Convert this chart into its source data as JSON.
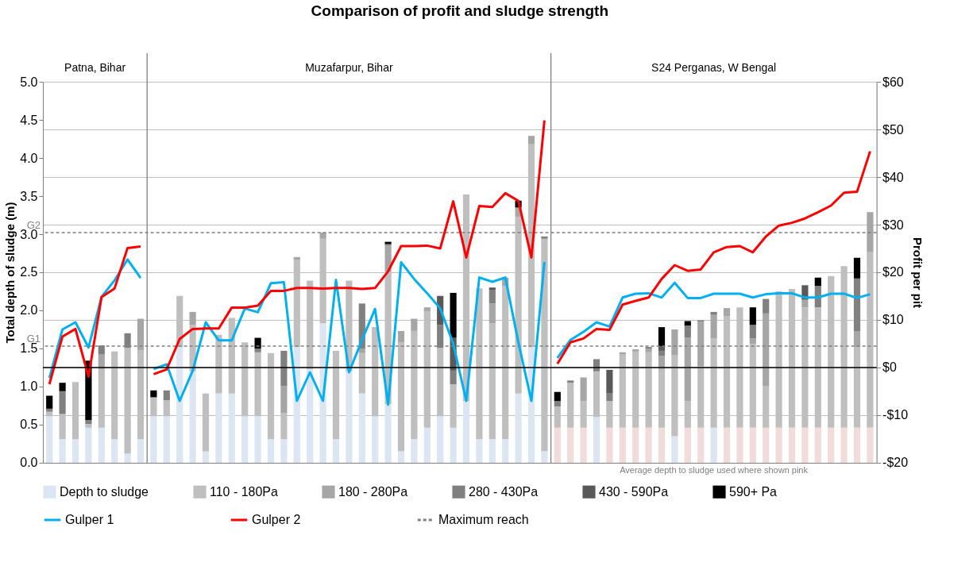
{
  "chart_data": {
    "type": "bar",
    "stacked": true,
    "title": "Comparison of profit and sludge strength",
    "ylabel": "Total depth of sludge  (m)",
    "y2label": "Profit  per pit",
    "categories": [
      null,
      null,
      null,
      null,
      null,
      null,
      null,
      null,
      null,
      null,
      null,
      null,
      null,
      null,
      null,
      null,
      null,
      null,
      null,
      null,
      null,
      null,
      null,
      null,
      null,
      null,
      null,
      null,
      null,
      null,
      null,
      null,
      null,
      null,
      null,
      null,
      null,
      null,
      null,
      null,
      null,
      null,
      null,
      null,
      null,
      null,
      null,
      null,
      null,
      null,
      null,
      null,
      null,
      null,
      null,
      null,
      null,
      null,
      null,
      null,
      null,
      null,
      null,
      null
    ],
    "ylim": [
      0,
      5
    ],
    "yticks": [
      {
        "value": 0,
        "label": "0.0"
      },
      {
        "value": 0.5,
        "label": "0.5"
      },
      {
        "value": 1,
        "label": "1.0"
      },
      {
        "value": 1.5,
        "label": "1.5"
      },
      {
        "value": 2,
        "label": "2.0"
      },
      {
        "value": 2.5,
        "label": "2.5"
      },
      {
        "value": 3,
        "label": "3.0"
      },
      {
        "value": 3.5,
        "label": "3.5"
      },
      {
        "value": 4,
        "label": "4.0"
      },
      {
        "value": 4.5,
        "label": "4.5"
      },
      {
        "value": 5,
        "label": "5.0"
      }
    ],
    "y2lim": [
      -20,
      60
    ],
    "y2ticks": [
      {
        "value": -20,
        "label": "-$20"
      },
      {
        "value": -10,
        "label": "-$10"
      },
      {
        "value": 0,
        "label": "$0"
      },
      {
        "value": 10,
        "label": "$10"
      },
      {
        "value": 20,
        "label": "$20"
      },
      {
        "value": 30,
        "label": "$30"
      },
      {
        "value": 40,
        "label": "$40"
      },
      {
        "value": 50,
        "label": "$50"
      },
      {
        "value": 60,
        "label": "$60"
      }
    ],
    "grid": "y2",
    "legend": "bottom",
    "annotations": [
      "Patna, Bihar",
      "Muzafarpur, Bihar",
      "S24 Perganas, W Bengal",
      "Average depth to sludge used where shown pink"
    ],
    "ref_lines": [
      {
        "axis": "y",
        "value": 1.53,
        "label": "G1",
        "line_style": "dashed",
        "color": "#808080"
      },
      {
        "axis": "y",
        "value": 3.02,
        "label": "G2",
        "line_style": "dashed",
        "color": "#808080"
      },
      {
        "axis": "y2",
        "value": 0,
        "color": "#000000"
      }
    ],
    "series": [
      {
        "name": "Depth to sludge",
        "color": "#dce6f2",
        "colors": [
          "#dce6f2",
          "#dce6f2",
          "#dce6f2",
          "#dce6f2",
          "#dce6f2",
          "#dce6f2",
          "#dce6f2",
          "#dce6f2",
          "#dce6f2",
          "#dce6f2",
          "#dce6f2",
          "#dce6f2",
          "#dce6f2",
          "#dce6f2",
          "#dce6f2",
          "#dce6f2",
          "#dce6f2",
          "#dce6f2",
          "#dce6f2",
          "#dce6f2",
          "#dce6f2",
          "#dce6f2",
          "#dce6f2",
          "#dce6f2",
          "#dce6f2",
          "#dce6f2",
          "#dce6f2",
          "#dce6f2",
          "#dce6f2",
          "#dce6f2",
          "#dce6f2",
          "#dce6f2",
          "#dce6f2",
          "#dce6f2",
          "#dce6f2",
          "#dce6f2",
          "#dce6f2",
          "#dce6f2",
          "#dce6f2",
          "#f2dcdb",
          "#f2dcdb",
          "#f2dcdb",
          "#dce6f2",
          "#f2dcdb",
          "#f2dcdb",
          "#f2dcdb",
          "#f2dcdb",
          "#f2dcdb",
          "#dce6f2",
          "#f2dcdb",
          "#f2dcdb",
          "#dce6f2",
          "#f2dcdb",
          "#f2dcdb",
          "#f2dcdb",
          "#f2dcdb",
          "#f2dcdb",
          "#f2dcdb",
          "#f2dcdb",
          "#f2dcdb",
          "#f2dcdb",
          "#f2dcdb",
          "#f2dcdb",
          "#f2dcdb"
        ],
        "values": [
          0.61,
          0.31,
          0.31,
          0.46,
          0.46,
          0.31,
          0.12,
          0.31,
          0.61,
          0.61,
          1.52,
          1.2,
          0.15,
          0.91,
          0.91,
          0.61,
          0.61,
          0.31,
          0.31,
          1.52,
          1.23,
          1.83,
          0.31,
          1.2,
          0.91,
          0.61,
          0.77,
          0.15,
          0.31,
          0.46,
          0.61,
          0.46,
          0.81,
          0.31,
          0.31,
          0.31,
          0.91,
          1.52,
          0.15,
          0.46,
          0.46,
          0.46,
          0.6,
          0.46,
          0.46,
          0.46,
          0.46,
          0.46,
          0.35,
          0.46,
          0.46,
          0.46,
          0.46,
          0.46,
          0.46,
          0.46,
          0.46,
          0.46,
          0.46,
          0.46,
          0.46,
          0.46,
          0.46,
          0.46
        ]
      },
      {
        "name": "110 - 180Pa",
        "color": "#bfbfbf",
        "values": [
          0.06,
          0.33,
          0.75,
          0.05,
          0.77,
          1.15,
          1.39,
          1.17,
          0.25,
          0.21,
          0.67,
          0.61,
          0.76,
          0.77,
          0.99,
          0.97,
          0.84,
          1.13,
          0.34,
          1.14,
          1.16,
          1.11,
          1.16,
          1.19,
          0.53,
          1.17,
          1.74,
          1.43,
          1.42,
          1.53,
          0.9,
          0.57,
          2.71,
          1.98,
          1.52,
          2.01,
          2.32,
          2.66,
          2.79,
          0.28,
          0.59,
          0.35,
          0.6,
          0.35,
          0.96,
          1.0,
          0.99,
          0.77,
          1.06,
          0.35,
          0.81,
          1.17,
          1.46,
          1.58,
          1.1,
          0.55,
          1.79,
          1.82,
          1.58,
          1.58,
          1.99,
          2.12,
          1.06,
          2.31
        ]
      },
      {
        "name": "180 - 280Pa",
        "color": "#a6a6a6",
        "values": [
          null,
          null,
          null,
          null,
          0.19,
          null,
          null,
          0.41,
          null,
          null,
          null,
          0.17,
          null,
          null,
          null,
          null,
          null,
          null,
          0.36,
          0.04,
          null,
          0.08,
          null,
          null,
          0.06,
          null,
          0.34,
          0.15,
          0.16,
          0.05,
          null,
          null,
          null,
          null,
          0.26,
          0.11,
          0.12,
          0.11,
          null,
          null,
          null,
          0.31,
          null,
          null,
          0.03,
          0.03,
          0.05,
          0.17,
          0.34,
          0.83,
          0.58,
          0.31,
          0.11,
          null,
          0.07,
          0.95,
          null,
          null,
          0.1,
          null,
          null,
          null,
          0.21,
          0.52
        ]
      },
      {
        "name": "280 - 430Pa",
        "color": "#808080",
        "values": [
          0.04,
          0.3,
          null,
          0.05,
          0.12,
          null,
          0.19,
          null,
          null,
          0.13,
          null,
          null,
          null,
          null,
          null,
          null,
          0.05,
          null,
          0.46,
          null,
          null,
          null,
          null,
          null,
          0.59,
          null,
          0.02,
          null,
          null,
          null,
          0.3,
          0.18,
          null,
          null,
          0.18,
          null,
          null,
          null,
          0.03,
          0.07,
          0.03,
          null,
          0.16,
          0.1,
          null,
          null,
          0.02,
          0.07,
          null,
          0.16,
          0.02,
          0.04,
          null,
          null,
          0.18,
          0.19,
          null,
          null,
          null,
          0.28,
          null,
          null,
          0.69,
          null
        ]
      },
      {
        "name": "430 - 590Pa",
        "color": "#595959",
        "values": [
          null,
          null,
          null,
          null,
          null,
          null,
          null,
          null,
          null,
          null,
          null,
          null,
          null,
          null,
          null,
          null,
          null,
          null,
          null,
          null,
          null,
          null,
          null,
          null,
          null,
          null,
          null,
          null,
          null,
          null,
          0.38,
          0.43,
          null,
          null,
          0.03,
          null,
          null,
          null,
          null,
          null,
          null,
          null,
          null,
          0.31,
          null,
          null,
          null,
          0.06,
          null,
          null,
          null,
          null,
          null,
          null,
          null,
          null,
          null,
          null,
          0.19,
          null,
          null,
          null,
          null,
          null
        ]
      },
      {
        "name": "590+ Pa",
        "color": "#000000",
        "values": [
          0.17,
          0.11,
          null,
          0.78,
          null,
          null,
          null,
          null,
          0.09,
          null,
          null,
          null,
          null,
          null,
          null,
          null,
          0.14,
          null,
          null,
          null,
          null,
          null,
          null,
          null,
          null,
          null,
          0.03,
          null,
          null,
          null,
          null,
          0.59,
          null,
          null,
          null,
          null,
          0.09,
          null,
          null,
          0.12,
          null,
          null,
          null,
          null,
          null,
          null,
          null,
          0.25,
          null,
          0.06,
          null,
          null,
          null,
          null,
          0.23,
          null,
          null,
          null,
          null,
          0.11,
          null,
          null,
          0.27,
          null
        ]
      },
      {
        "name": "Gulper 1",
        "type": "line",
        "axis": "y2",
        "color": "#00b0f0",
        "values": [
          -2.2,
          8.0,
          9.5,
          4.2,
          14.8,
          18.3,
          22.7,
          18.8,
          null,
          null,
          null,
          null,
          null,
          null,
          null,
          null,
          null,
          null,
          null,
          null,
          null,
          null,
          null,
          null,
          null,
          null,
          null,
          null,
          null,
          null,
          null,
          null,
          null,
          null,
          null,
          null,
          null,
          null,
          null,
          null,
          null,
          null,
          null,
          null,
          null,
          null,
          null,
          null,
          null,
          null,
          null,
          null,
          null,
          null,
          null,
          null,
          null,
          null,
          null,
          null,
          null,
          null,
          null,
          null
        ]
      },
      {
        "name": "Gulper 2",
        "type": "line",
        "axis": "y2",
        "color": "#ff0000",
        "values": [
          -3.5,
          6.5,
          8.1,
          -1.9,
          14.8,
          16.6,
          25.1,
          25.4,
          null,
          null,
          null,
          null,
          null,
          null,
          null,
          null,
          null,
          null,
          null,
          null,
          null,
          null,
          null,
          null,
          null,
          null,
          null,
          null,
          null,
          null,
          null,
          null,
          null,
          null,
          null,
          null,
          null,
          null,
          null,
          null,
          null,
          null,
          null,
          null,
          null,
          null,
          null,
          null,
          null,
          null,
          null,
          null,
          null,
          null,
          null,
          null,
          null,
          null,
          null,
          null,
          null,
          null,
          null,
          null
        ]
      },
      {
        "type": "line",
        "axis": "y2",
        "color": "#00b0f0",
        "values": [
          null,
          null,
          null,
          null,
          null,
          null,
          null,
          null,
          -0.3,
          0.7,
          -7.0,
          -0.7,
          9.5,
          5.7,
          5.7,
          12.4,
          11.6,
          17.7,
          17.9,
          -7.0,
          -1.0,
          -7.0,
          18.4,
          -1.0,
          5.8,
          12.3,
          -7.8,
          22.1,
          18.6,
          15.6,
          12.4,
          5.0,
          -7.0,
          18.9,
          18.0,
          18.9,
          5.3,
          -7.0,
          22.2,
          null,
          null,
          null,
          null,
          null,
          null,
          null,
          null,
          null,
          null,
          null,
          null,
          null,
          null,
          null,
          null,
          null,
          null,
          null,
          null,
          null,
          null,
          null,
          null,
          null
        ]
      },
      {
        "type": "line",
        "axis": "y2",
        "color": "#ff0000",
        "values": [
          null,
          null,
          null,
          null,
          null,
          null,
          null,
          null,
          -1.4,
          -0.4,
          6.0,
          8.1,
          8.2,
          8.2,
          12.6,
          12.6,
          13.0,
          16.1,
          16.1,
          16.7,
          16.7,
          16.6,
          16.7,
          16.7,
          16.5,
          16.7,
          20.2,
          25.5,
          25.5,
          25.6,
          25.0,
          34.9,
          23.1,
          33.9,
          33.7,
          36.6,
          35.0,
          23.1,
          51.9,
          null,
          null,
          null,
          null,
          null,
          null,
          null,
          null,
          null,
          null,
          null,
          null,
          null,
          null,
          null,
          null,
          null,
          null,
          null,
          null,
          null,
          null,
          null,
          null,
          null
        ]
      },
      {
        "type": "line",
        "axis": "y2",
        "color": "#00b0f0",
        "values": [
          null,
          null,
          null,
          null,
          null,
          null,
          null,
          null,
          null,
          null,
          null,
          null,
          null,
          null,
          null,
          null,
          null,
          null,
          null,
          null,
          null,
          null,
          null,
          null,
          null,
          null,
          null,
          null,
          null,
          null,
          null,
          null,
          null,
          null,
          null,
          null,
          null,
          null,
          null,
          2.0,
          5.8,
          7.5,
          9.5,
          8.6,
          14.7,
          15.5,
          15.6,
          14.7,
          17.8,
          14.6,
          14.6,
          15.5,
          15.5,
          15.5,
          14.7,
          15.4,
          15.6,
          15.6,
          14.7,
          14.7,
          15.5,
          15.5,
          14.6,
          15.4
        ]
      },
      {
        "type": "line",
        "axis": "y2",
        "color": "#ff0000",
        "values": [
          null,
          null,
          null,
          null,
          null,
          null,
          null,
          null,
          null,
          null,
          null,
          null,
          null,
          null,
          null,
          null,
          null,
          null,
          null,
          null,
          null,
          null,
          null,
          null,
          null,
          null,
          null,
          null,
          null,
          null,
          null,
          null,
          null,
          null,
          null,
          null,
          null,
          null,
          null,
          0.8,
          5.3,
          6.1,
          8.1,
          7.9,
          13.2,
          14.0,
          14.7,
          18.6,
          21.5,
          20.3,
          20.6,
          24.2,
          25.3,
          25.5,
          24.2,
          27.5,
          29.8,
          30.4,
          31.3,
          32.6,
          34.0,
          36.7,
          36.9,
          45.4
        ]
      },
      {
        "name": "Maximum reach",
        "type": "line",
        "line_style": "dashed",
        "color": "#808080",
        "values": [
          null,
          null,
          null,
          null,
          null,
          null,
          null,
          null,
          null,
          null,
          null,
          null,
          null,
          null,
          null,
          null,
          null,
          null,
          null,
          null,
          null,
          null,
          null,
          null,
          null,
          null,
          null,
          null,
          null,
          null,
          null,
          null,
          null,
          null,
          null,
          null,
          null,
          null,
          null,
          null,
          null,
          null,
          null,
          null,
          null,
          null,
          null,
          null,
          null,
          null,
          null,
          null,
          null,
          null,
          null,
          null,
          null,
          null,
          null,
          null,
          null,
          null,
          null,
          null
        ]
      }
    ]
  }
}
